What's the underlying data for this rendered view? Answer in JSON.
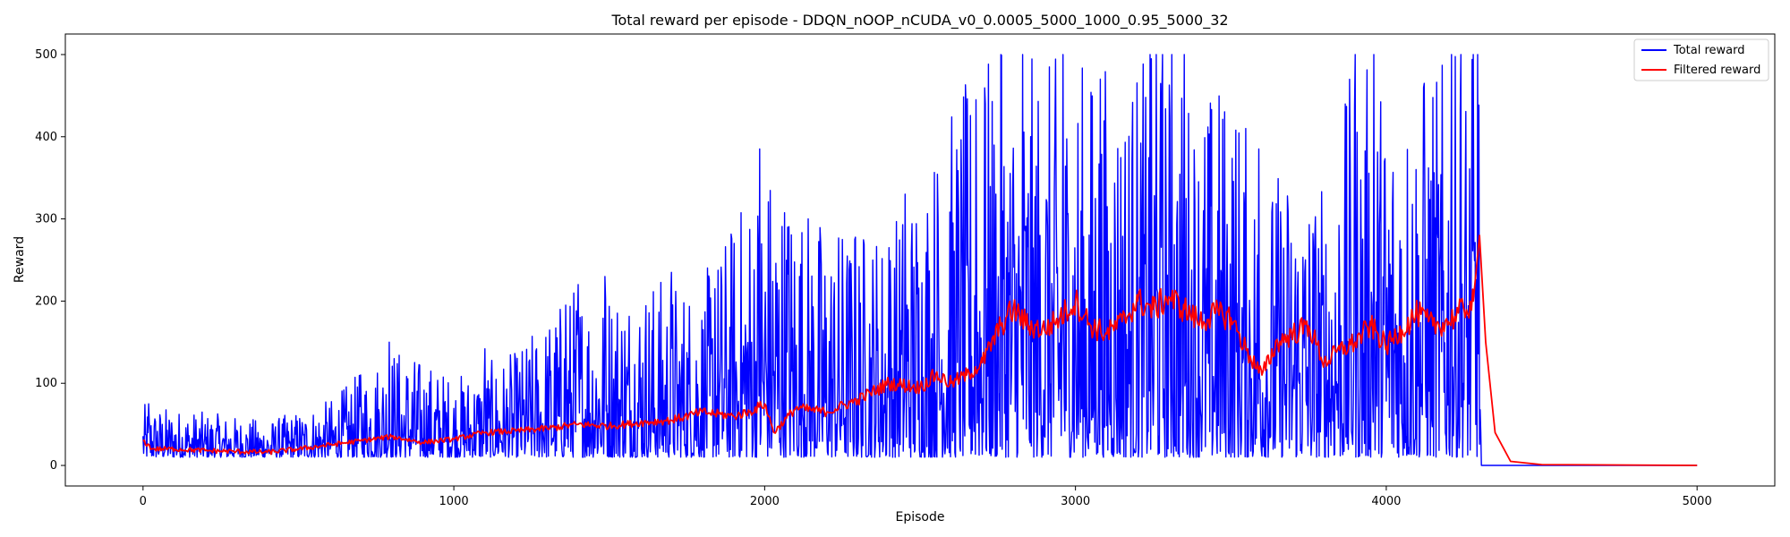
{
  "chart_data": {
    "type": "line",
    "title": "Total reward per episode - DDQN_nOOP_nCUDA_v0_0.0005_5000_1000_0.95_5000_32",
    "xlabel": "Episode",
    "ylabel": "Reward",
    "xlim": [
      -250,
      5250
    ],
    "ylim": [
      -25,
      525
    ],
    "xticks": [
      0,
      1000,
      2000,
      3000,
      4000,
      5000
    ],
    "yticks": [
      0,
      100,
      200,
      300,
      400,
      500
    ],
    "grid": false,
    "legend_position": "top-right",
    "series": [
      {
        "name": "Total reward",
        "color": "#0000ff",
        "kind": "noisy",
        "x": [
          0,
          200,
          400,
          600,
          800,
          1000,
          1200,
          1400,
          1600,
          1800,
          2000,
          2200,
          2400,
          2600,
          2700,
          2800,
          2900,
          3000,
          3100,
          3200,
          3300,
          3400,
          3500,
          3600,
          3700,
          3800,
          3900,
          4000,
          4100,
          4200,
          4270,
          4300,
          4305,
          5000
        ],
        "low": [
          10,
          10,
          10,
          10,
          10,
          10,
          10,
          10,
          10,
          10,
          10,
          10,
          10,
          10,
          10,
          10,
          10,
          10,
          10,
          10,
          10,
          10,
          10,
          10,
          10,
          10,
          10,
          10,
          10,
          10,
          10,
          10,
          0,
          0
        ],
        "high": [
          75,
          65,
          55,
          80,
          150,
          110,
          140,
          230,
          235,
          230,
          385,
          300,
          300,
          440,
          500,
          500,
          500,
          500,
          500,
          500,
          500,
          460,
          490,
          350,
          380,
          350,
          500,
          480,
          480,
          500,
          500,
          500,
          0,
          0
        ],
        "spikes": [
          [
            18,
            75
          ],
          [
            242,
            55
          ],
          [
            425,
            40
          ],
          [
            700,
            110
          ],
          [
            792,
            150
          ],
          [
            1100,
            142
          ],
          [
            1360,
            195
          ],
          [
            1400,
            220
          ],
          [
            1487,
            230
          ],
          [
            1700,
            235
          ],
          [
            1840,
            215
          ],
          [
            1985,
            385
          ],
          [
            2074,
            290
          ],
          [
            2290,
            275
          ],
          [
            2400,
            265
          ],
          [
            2453,
            330
          ],
          [
            2680,
            445
          ],
          [
            2710,
            440
          ],
          [
            2760,
            500
          ],
          [
            2830,
            500
          ],
          [
            2960,
            500
          ],
          [
            3080,
            470
          ],
          [
            3240,
            500
          ],
          [
            3260,
            500
          ],
          [
            3280,
            500
          ],
          [
            3310,
            500
          ],
          [
            3350,
            500
          ],
          [
            3590,
            385
          ],
          [
            3900,
            500
          ],
          [
            3960,
            500
          ],
          [
            4120,
            460
          ],
          [
            4210,
            500
          ],
          [
            4240,
            500
          ],
          [
            4280,
            500
          ],
          [
            4295,
            500
          ]
        ]
      },
      {
        "name": "Filtered reward",
        "color": "#ff0000",
        "kind": "filtered",
        "x": [
          0,
          30,
          100,
          200,
          300,
          400,
          500,
          600,
          700,
          800,
          900,
          1000,
          1100,
          1200,
          1300,
          1400,
          1500,
          1600,
          1700,
          1800,
          1900,
          1950,
          2000,
          2030,
          2100,
          2200,
          2300,
          2400,
          2500,
          2550,
          2600,
          2650,
          2700,
          2760,
          2800,
          2850,
          2900,
          2950,
          3000,
          3050,
          3100,
          3150,
          3200,
          3250,
          3300,
          3350,
          3400,
          3450,
          3500,
          3550,
          3600,
          3650,
          3700,
          3750,
          3800,
          3850,
          3900,
          3950,
          4000,
          4050,
          4100,
          4150,
          4200,
          4250,
          4280,
          4300,
          4320,
          4350,
          4400,
          4500,
          5000
        ],
        "y": [
          30,
          20,
          20,
          18,
          17,
          16,
          20,
          25,
          30,
          35,
          28,
          32,
          40,
          42,
          45,
          50,
          48,
          52,
          55,
          65,
          60,
          65,
          75,
          40,
          70,
          65,
          80,
          100,
          95,
          110,
          100,
          110,
          125,
          170,
          190,
          170,
          165,
          180,
          200,
          170,
          160,
          175,
          200,
          190,
          205,
          190,
          175,
          185,
          180,
          140,
          110,
          150,
          160,
          170,
          125,
          140,
          150,
          170,
          145,
          165,
          185,
          170,
          175,
          190,
          200,
          280,
          150,
          40,
          5,
          1,
          0
        ]
      }
    ]
  }
}
